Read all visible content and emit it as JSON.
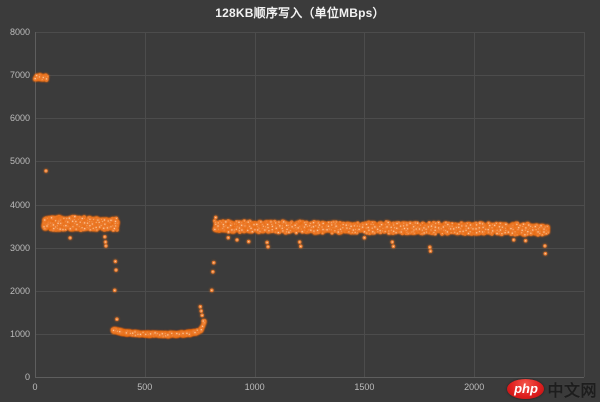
{
  "page": {
    "background": "#3B3B3B"
  },
  "chart_data": {
    "type": "scatter",
    "title": "128KB顺序写入（单位MBps）",
    "xlabel": "",
    "ylabel": "",
    "xlim": [
      0,
      2500
    ],
    "ylim": [
      0,
      8000
    ],
    "x_ticks": [
      0,
      500,
      1000,
      1500,
      2000
    ],
    "y_ticks": [
      0,
      1000,
      2000,
      3000,
      4000,
      5000,
      6000,
      7000,
      8000
    ],
    "grid": true,
    "legend_position": "none",
    "point_color": "#ED7D31",
    "point_highlight": "#FCD2A4",
    "point_glow": "#E8731C",
    "segments": [
      {
        "label": "startup-burst",
        "x_range": [
          0,
          57
        ],
        "count": 60,
        "y_profile": [
          [
            0,
            6950
          ],
          [
            57,
            6950
          ]
        ],
        "y_jitter": 70
      },
      {
        "label": "band-1-high",
        "x_range": [
          40,
          376
        ],
        "count": 950,
        "y_profile": [
          [
            40,
            3570
          ],
          [
            376,
            3545
          ]
        ],
        "y_jitter": 165
      },
      {
        "label": "low-band",
        "x_range": [
          350,
          772
        ],
        "count": 520,
        "y_profile": [
          [
            350,
            1090
          ],
          [
            420,
            1020
          ],
          [
            500,
            1000
          ],
          [
            600,
            985
          ],
          [
            680,
            1000
          ],
          [
            730,
            1035
          ],
          [
            760,
            1120
          ],
          [
            772,
            1300
          ]
        ],
        "y_jitter": 45
      },
      {
        "label": "band-2-recovered",
        "x_range": [
          817,
          2336
        ],
        "count": 2800,
        "y_profile": [
          [
            817,
            3490
          ],
          [
            1600,
            3460
          ],
          [
            2336,
            3425
          ]
        ],
        "y_jitter": 140
      }
    ],
    "outliers": [
      [
        50,
        4780
      ],
      [
        160,
        3225
      ],
      [
        318,
        3250
      ],
      [
        321,
        3130
      ],
      [
        323,
        3040
      ],
      [
        366,
        2680
      ],
      [
        369,
        2480
      ],
      [
        363,
        2010
      ],
      [
        373,
        1340
      ],
      [
        753,
        1630
      ],
      [
        757,
        1530
      ],
      [
        761,
        1430
      ],
      [
        766,
        1300
      ],
      [
        805,
        2010
      ],
      [
        810,
        2440
      ],
      [
        814,
        2650
      ],
      [
        823,
        3700
      ],
      [
        880,
        3230
      ],
      [
        920,
        3180
      ],
      [
        973,
        3140
      ],
      [
        1057,
        3120
      ],
      [
        1061,
        3020
      ],
      [
        1205,
        3130
      ],
      [
        1210,
        3030
      ],
      [
        1500,
        3230
      ],
      [
        1627,
        3130
      ],
      [
        1632,
        3030
      ],
      [
        1798,
        3010
      ],
      [
        1801,
        2920
      ],
      [
        2180,
        3180
      ],
      [
        2234,
        3160
      ],
      [
        2322,
        3040
      ],
      [
        2324,
        2860
      ]
    ]
  },
  "axes_style": {
    "label_color": "#BDBDBD",
    "grid_color": "#4C4C4C",
    "axis_color": "#5E5E5E",
    "title_color": "#F2F2F2"
  },
  "watermark": {
    "logo_text": "php",
    "site_text": "中文网",
    "logo_color": "#D81A1A"
  }
}
